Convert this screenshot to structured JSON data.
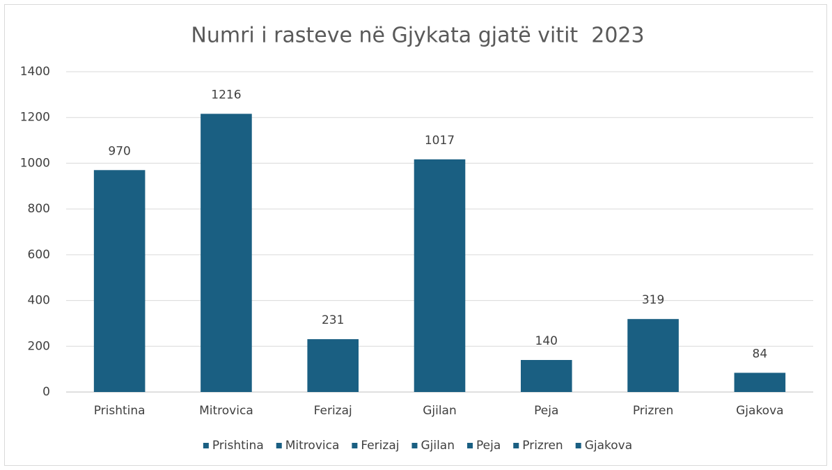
{
  "chart_data": {
    "type": "bar",
    "title": "Numri i rasteve në Gjykata gjatë vitit  2023",
    "categories": [
      "Prishtina",
      "Mitrovica",
      "Ferizaj",
      "Gjilan",
      "Peja",
      "Prizren",
      "Gjakova"
    ],
    "values": [
      970,
      1216,
      231,
      1017,
      140,
      319,
      84
    ],
    "color": "#1a5f82",
    "ylim": [
      0,
      1400
    ],
    "yticks": [
      0,
      200,
      400,
      600,
      800,
      1000,
      1200,
      1400
    ],
    "grid": true,
    "legend": "bottom"
  }
}
